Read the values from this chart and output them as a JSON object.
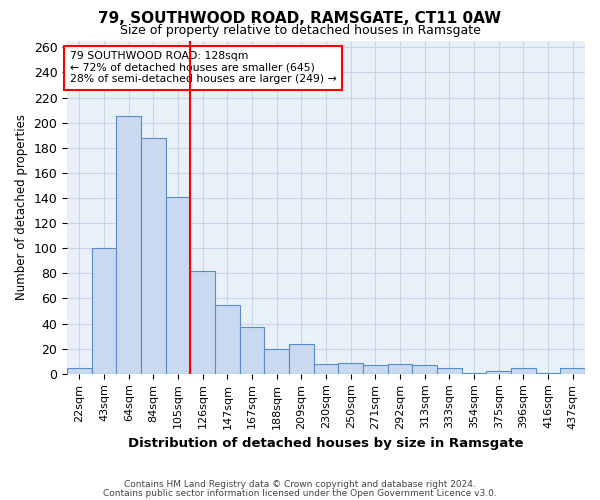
{
  "title": "79, SOUTHWOOD ROAD, RAMSGATE, CT11 0AW",
  "subtitle": "Size of property relative to detached houses in Ramsgate",
  "xlabel": "Distribution of detached houses by size in Ramsgate",
  "ylabel": "Number of detached properties",
  "categories": [
    "22sqm",
    "43sqm",
    "64sqm",
    "84sqm",
    "105sqm",
    "126sqm",
    "147sqm",
    "167sqm",
    "188sqm",
    "209sqm",
    "230sqm",
    "250sqm",
    "271sqm",
    "292sqm",
    "313sqm",
    "333sqm",
    "354sqm",
    "375sqm",
    "396sqm",
    "416sqm",
    "437sqm"
  ],
  "values": [
    5,
    100,
    205,
    188,
    141,
    82,
    55,
    37,
    20,
    24,
    8,
    9,
    7,
    8,
    7,
    5,
    1,
    2,
    5,
    1,
    5
  ],
  "bar_color_face": "#c9d9f0",
  "bar_color_edge": "#5b8bc9",
  "annotation_title": "79 SOUTHWOOD ROAD: 128sqm",
  "annotation_line1": "← 72% of detached houses are smaller (645)",
  "annotation_line2": "28% of semi-detached houses are larger (249) →",
  "annotation_box_color": "white",
  "annotation_box_edgecolor": "red",
  "vline_color": "red",
  "ylim": [
    0,
    265
  ],
  "yticks": [
    0,
    20,
    40,
    60,
    80,
    100,
    120,
    140,
    160,
    180,
    200,
    220,
    240,
    260
  ],
  "grid_color": "#c8d4e8",
  "background_color": "#eaf0f8",
  "footer1": "Contains HM Land Registry data © Crown copyright and database right 2024.",
  "footer2": "Contains public sector information licensed under the Open Government Licence v3.0."
}
